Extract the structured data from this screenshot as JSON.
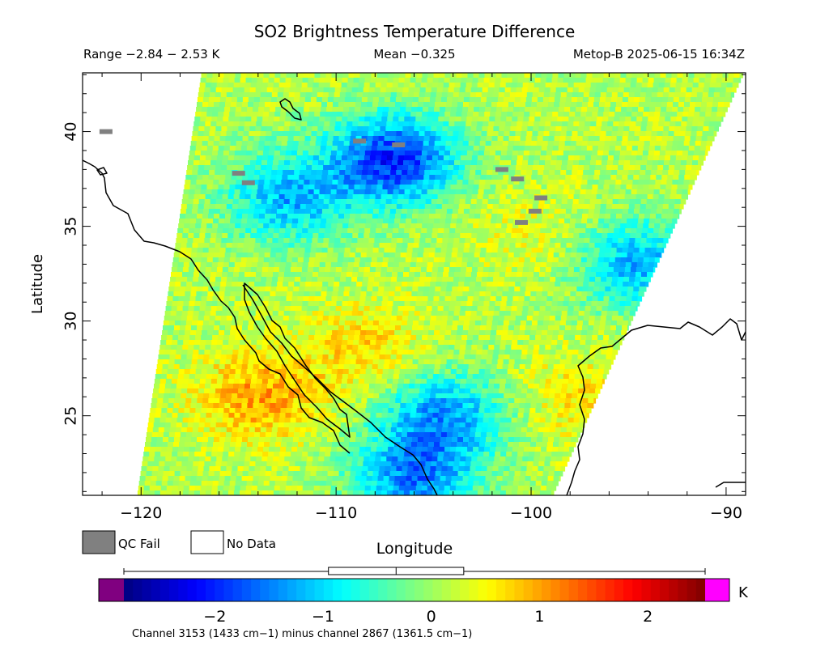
{
  "header": {
    "title": "SO2 Brightness Temperature Difference",
    "range": "Range −2.84 − 2.53 K",
    "mean": "Mean −0.325",
    "satellite_time": "Metop-B 2025-06-15 16:34Z"
  },
  "legend": {
    "qc_fail": "QC Fail",
    "no_data": "No Data",
    "qc_fail_color": "#808080",
    "no_data_color": "#ffffff"
  },
  "colorbar": {
    "unit": "K",
    "ticks": [
      "−2",
      "−1",
      "0",
      "1",
      "2"
    ],
    "tick_values": [
      -2,
      -1,
      0,
      1,
      2
    ],
    "min": -2.84,
    "max": 2.53,
    "mean": -0.325,
    "box_range": [
      -0.95,
      0.3
    ],
    "caption": "Channel 3153 (1433 cm−1) minus channel 2867 (1361.5 cm−1)",
    "below_color": "#800080",
    "above_color": "#ff00ff"
  },
  "chart_data": {
    "type": "heatmap",
    "title": "SO2 Brightness Temperature Difference",
    "xlabel": "Longitude",
    "ylabel": "Latitude",
    "xlim": [
      -123.0,
      -89.0
    ],
    "ylim": [
      20.8,
      43.1
    ],
    "x_ticks": [
      -120,
      -110,
      -100,
      -90
    ],
    "x_tick_labels": [
      "−120",
      "−110",
      "−100",
      "−90"
    ],
    "y_ticks": [
      25,
      30,
      35,
      40
    ],
    "y_tick_labels": [
      "25",
      "30",
      "35",
      "40"
    ],
    "value_range": [
      -2.84,
      2.53
    ],
    "mean": -0.325,
    "units": "K",
    "swath_corners": {
      "top_left": [
        -116.9,
        43.1
      ],
      "top_right": [
        -89.1,
        43.1
      ],
      "bottom_right": [
        -98.9,
        20.8
      ],
      "bottom_left": [
        -120.2,
        20.8
      ]
    },
    "features": [
      {
        "lon": -107.0,
        "lat": 38.5,
        "value": -2.0
      },
      {
        "lon": -112.5,
        "lat": 36.5,
        "value": -1.2
      },
      {
        "lon": -104.5,
        "lat": 25.0,
        "value": -1.3
      },
      {
        "lon": -106.0,
        "lat": 21.6,
        "value": -1.4
      },
      {
        "lon": -94.5,
        "lat": 33.0,
        "value": -1.2
      },
      {
        "lon": -114.0,
        "lat": 26.0,
        "value": 1.0
      },
      {
        "lon": -108.5,
        "lat": 28.5,
        "value": 0.7
      },
      {
        "lon": -100.0,
        "lat": 34.5,
        "value": 0.4
      },
      {
        "lon": -97.5,
        "lat": 26.0,
        "value": 0.6
      }
    ],
    "qc_fail_points": [
      [
        -121.8,
        40.0
      ],
      [
        -115.0,
        37.8
      ],
      [
        -114.5,
        37.3
      ],
      [
        -106.8,
        39.3
      ],
      [
        -108.8,
        39.5
      ],
      [
        -101.5,
        38.0
      ],
      [
        -100.7,
        37.5
      ],
      [
        -99.5,
        36.5
      ],
      [
        -100.5,
        35.2
      ],
      [
        -99.8,
        35.8
      ]
    ]
  }
}
